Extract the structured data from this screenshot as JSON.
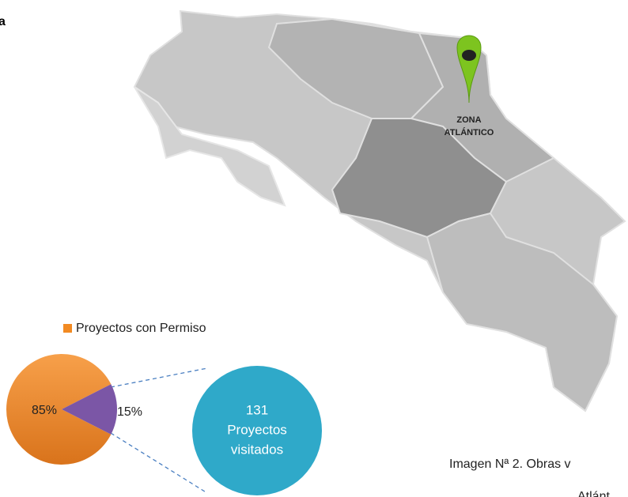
{
  "heading": "a",
  "map": {
    "label": [
      "ZONA",
      "ATLÁNTICO"
    ]
  },
  "chart_data": {
    "type": "pie",
    "legend": [
      "Proyectos con Permiso"
    ],
    "values": [
      85,
      15
    ],
    "value_labels": [
      "85%",
      "15%"
    ],
    "colors": [
      "#f28a22",
      "#7b56a6"
    ],
    "callout": {
      "lines": [
        "131",
        "Proyectos",
        "visitados"
      ],
      "color": "#2fa9c9"
    }
  },
  "caption": [
    "Imagen Nª 2. Obras v",
    "Atlánt"
  ]
}
